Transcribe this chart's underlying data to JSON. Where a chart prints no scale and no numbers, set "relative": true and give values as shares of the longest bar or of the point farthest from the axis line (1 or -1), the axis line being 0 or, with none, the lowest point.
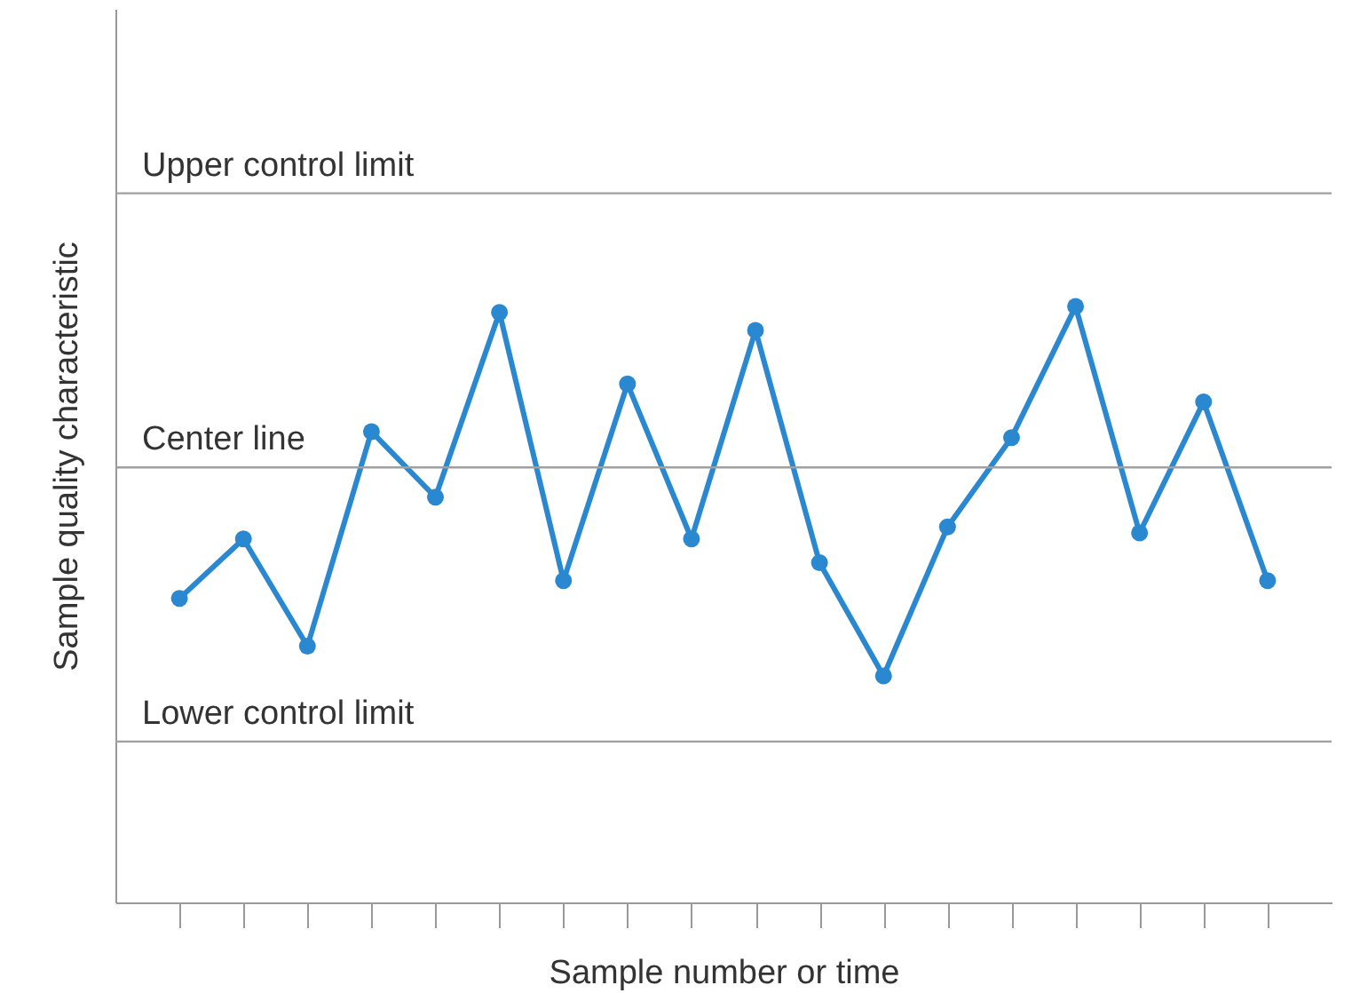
{
  "chart_data": {
    "type": "line",
    "relative": true,
    "xlabel": "Sample number or time",
    "ylabel": "Sample quality characteristic",
    "categories": [
      null,
      null,
      null,
      null,
      null,
      null,
      null,
      null,
      null,
      null,
      null,
      null,
      null,
      null,
      null,
      null,
      null,
      null
    ],
    "series": [
      {
        "color": "#2a88d0",
        "values": [
          0.51,
          0.61,
          0.43,
          0.79,
          0.68,
          0.99,
          0.54,
          0.87,
          0.61,
          0.96,
          0.57,
          0.38,
          0.63,
          0.78,
          1,
          0.62,
          0.84,
          0.54
        ]
      }
    ],
    "ref_lines": [
      {
        "axis": "y",
        "value": 1.19,
        "label": "Upper control limit",
        "color": "#a0a0a0"
      },
      {
        "axis": "y",
        "value": 0.73,
        "label": "Center line",
        "color": "#a0a0a0"
      },
      {
        "axis": "y",
        "value": 0.27,
        "label": "Lower control limit",
        "color": "#a0a0a0"
      }
    ],
    "marker": "circle",
    "line_style": "solid"
  }
}
